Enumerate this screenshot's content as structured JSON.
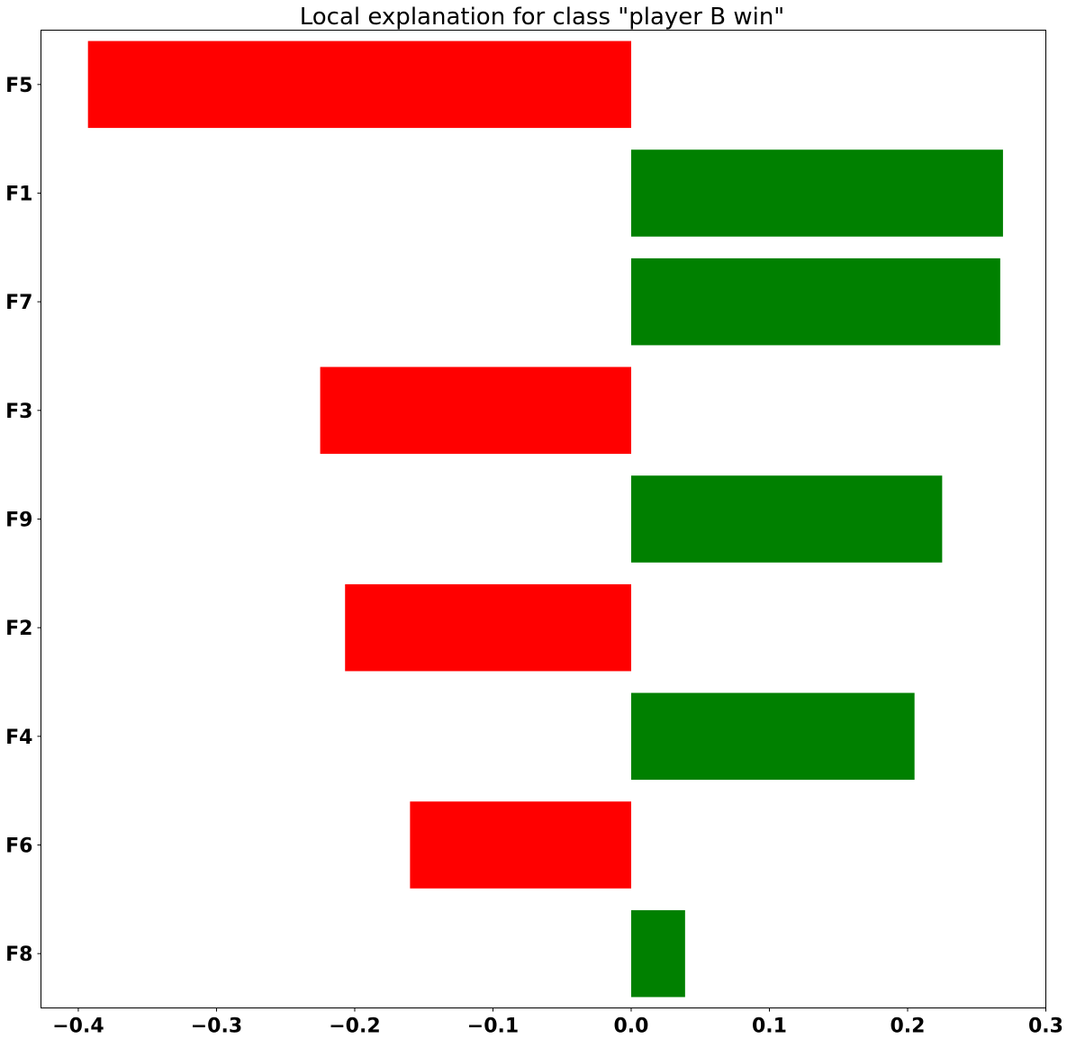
{
  "chart_data": {
    "type": "bar",
    "orientation": "horizontal",
    "title": "Local explanation for class \"player B win\"",
    "xlabel": "",
    "ylabel": "",
    "categories": [
      "F5",
      "F1",
      "F7",
      "F3",
      "F9",
      "F2",
      "F4",
      "F6",
      "F8"
    ],
    "values": [
      -0.393,
      0.269,
      0.267,
      -0.225,
      0.225,
      -0.207,
      0.205,
      -0.16,
      0.039
    ],
    "xlim": [
      -0.427,
      0.3
    ],
    "xticks": [
      -0.4,
      -0.3,
      -0.2,
      -0.1,
      0.0,
      0.1,
      0.2,
      0.3
    ],
    "xtick_labels": [
      "−0.4",
      "−0.3",
      "−0.2",
      "−0.1",
      "0.0",
      "0.1",
      "0.2",
      "0.3"
    ],
    "grid": false,
    "colors": {
      "positive": "#008000",
      "negative": "#ff0000"
    }
  }
}
